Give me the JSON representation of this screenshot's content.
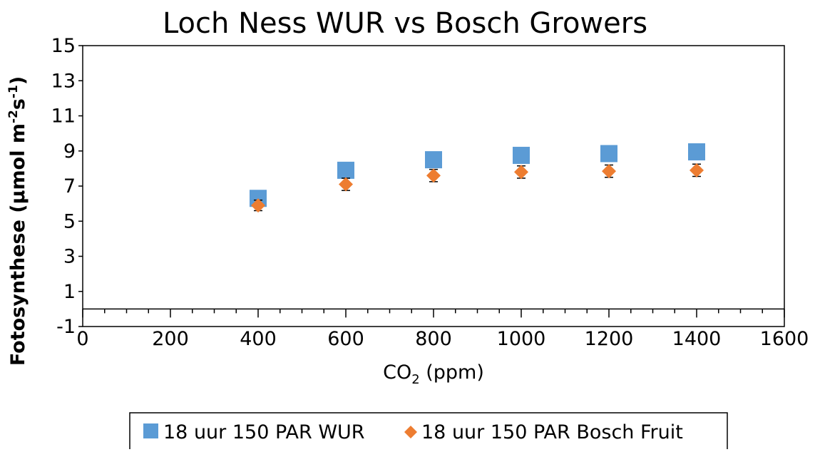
{
  "chart_data": {
    "type": "scatter",
    "title": "Loch Ness WUR vs Bosch Growers",
    "xlabel": {
      "base": "CO",
      "sub": "2",
      "rest": " (ppm)"
    },
    "ylabel": {
      "part1": "Fotosynthese (µmol m",
      "sup1": "-2",
      "part2": "s",
      "sup2": "-1",
      "part3": ")"
    },
    "xlim": [
      0,
      1600
    ],
    "ylim": [
      -1,
      15
    ],
    "x_ticks": [
      0,
      200,
      400,
      600,
      800,
      1000,
      1200,
      1400,
      1600
    ],
    "x_tick_labels": [
      "0",
      "200",
      "400",
      "600",
      "800",
      "1000",
      "1200",
      "1400",
      "1600"
    ],
    "y_ticks": [
      -1,
      1,
      3,
      5,
      7,
      9,
      11,
      13,
      15
    ],
    "y_tick_labels": [
      "-1",
      "1",
      "3",
      "5",
      "7",
      "9",
      "11",
      "13",
      "15"
    ],
    "x_axis_crosses_at": 0,
    "grid": false,
    "legend_position": "bottom",
    "series": [
      {
        "name": "18 uur 150 PAR WUR",
        "marker": "square",
        "color": "#5b9bd5",
        "x": [
          400,
          600,
          800,
          1000,
          1200,
          1400
        ],
        "y": [
          6.3,
          7.9,
          8.5,
          8.75,
          8.85,
          8.95
        ],
        "error": [
          0.25,
          0.3,
          0.3,
          0.3,
          0.3,
          0.3
        ]
      },
      {
        "name": "18 uur 150 PAR Bosch Fruit",
        "marker": "diamond",
        "color": "#ed7d31",
        "x": [
          400,
          600,
          800,
          1000,
          1200,
          1400
        ],
        "y": [
          5.9,
          7.1,
          7.6,
          7.8,
          7.85,
          7.9
        ],
        "error": [
          0.3,
          0.35,
          0.35,
          0.35,
          0.35,
          0.35
        ]
      }
    ]
  }
}
